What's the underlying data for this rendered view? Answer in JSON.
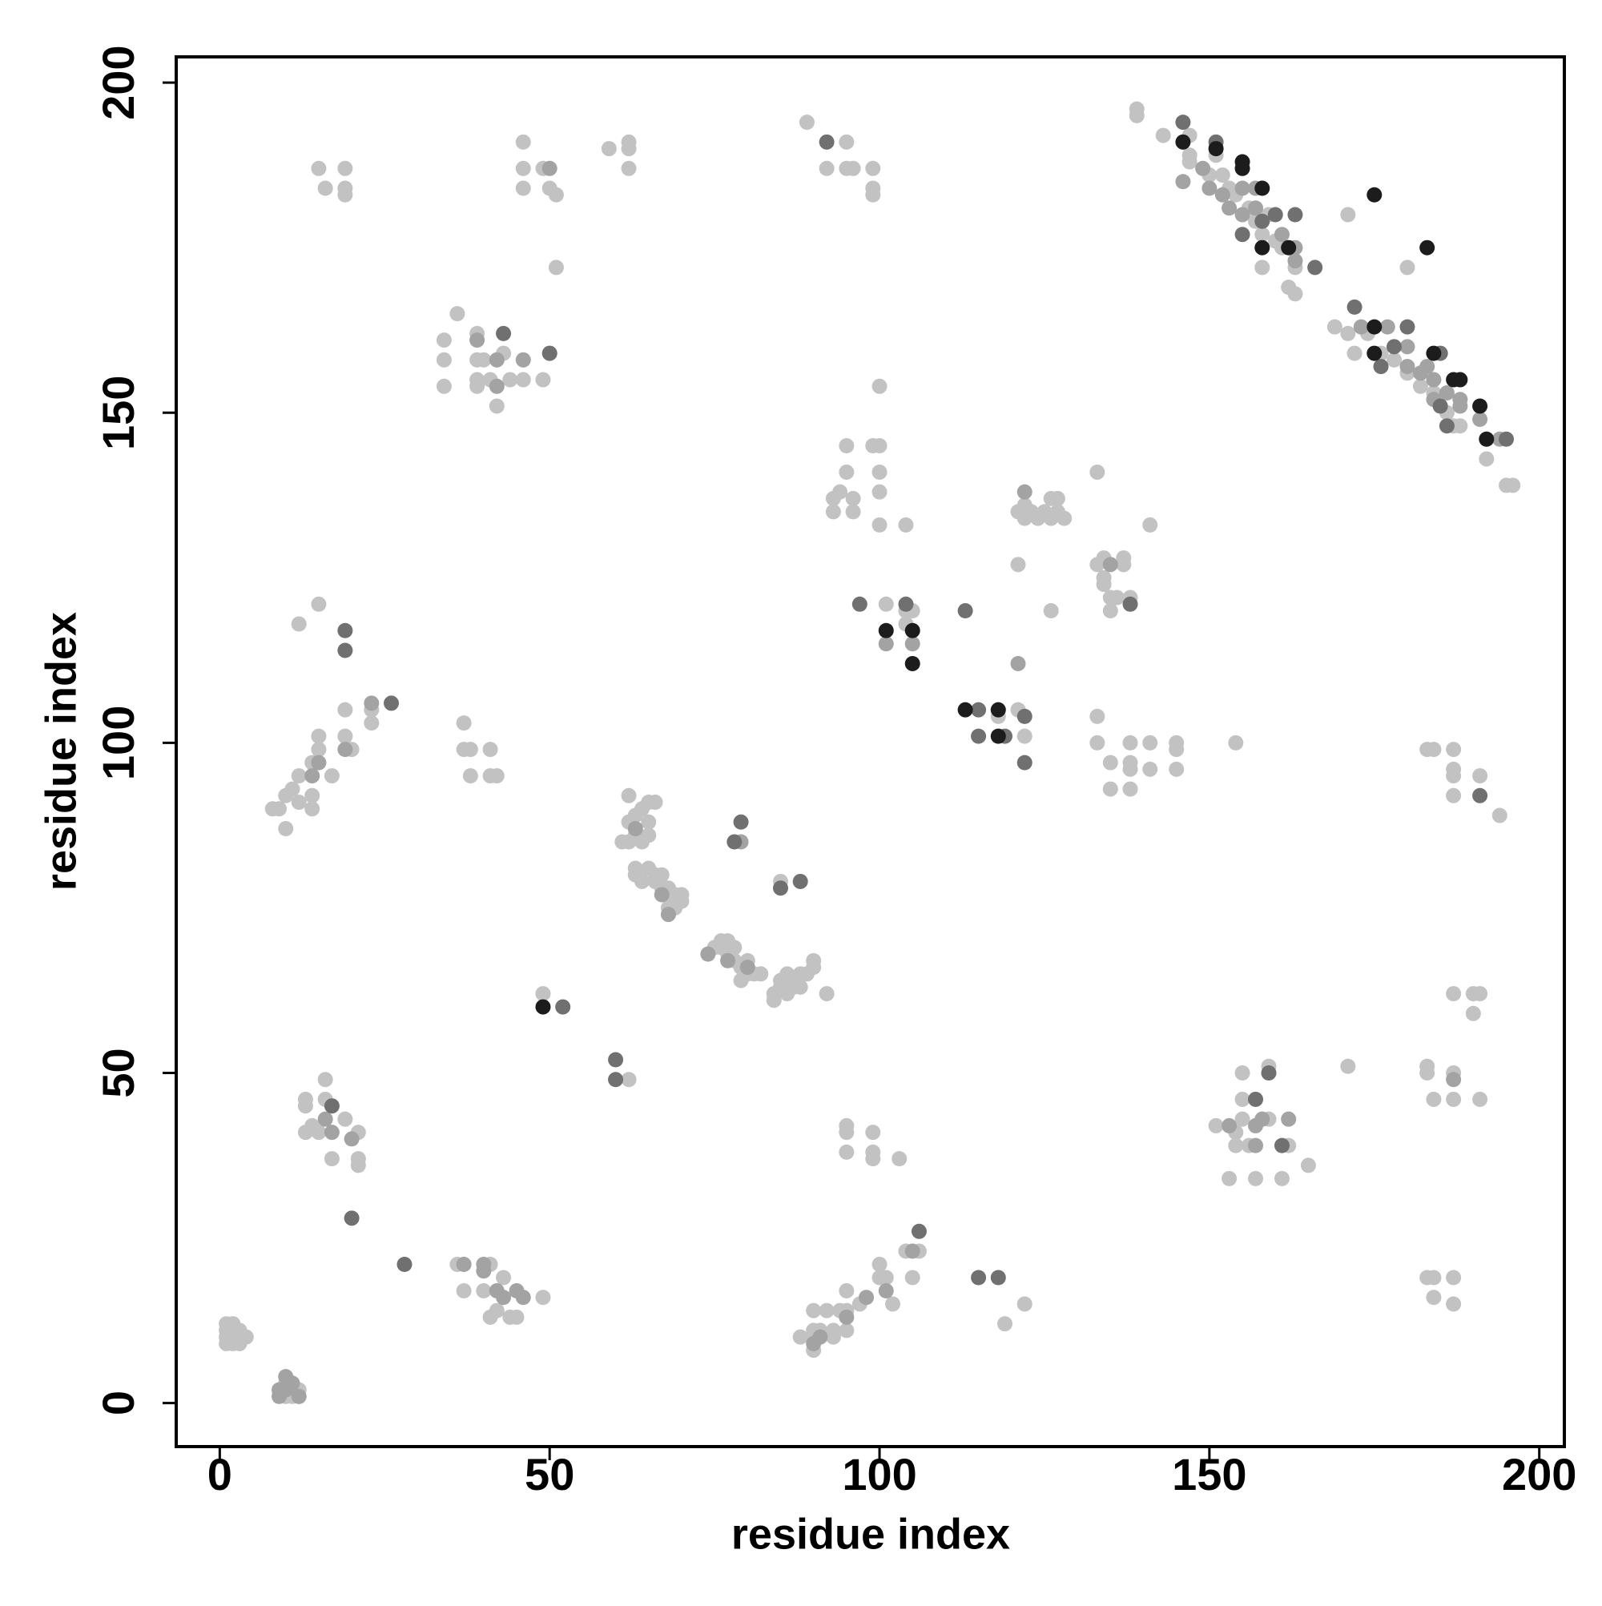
{
  "chart_data": {
    "type": "scatter",
    "xlabel": "residue index",
    "ylabel": "residue index",
    "xlim": [
      -6.6,
      203.8
    ],
    "ylim": [
      -6.6,
      203.9
    ],
    "xticks": [
      0,
      50,
      100,
      150,
      200
    ],
    "yticks": [
      0,
      50,
      100,
      150,
      200
    ],
    "grid": false,
    "series": [
      {
        "color": "#c2c2c2",
        "x": [
          1,
          1,
          1,
          1,
          2,
          2,
          2,
          2,
          3,
          3,
          3,
          4,
          10,
          10,
          11,
          11,
          12,
          12,
          8,
          9,
          10,
          10,
          11,
          12,
          12,
          14,
          14,
          14,
          15,
          15,
          17,
          19,
          19,
          20,
          23,
          23,
          12,
          15,
          13,
          13,
          13,
          14,
          15,
          16,
          16,
          17,
          19,
          21,
          21,
          21,
          15,
          16,
          19,
          19,
          19,
          36,
          37,
          40,
          41,
          41,
          42,
          43,
          44,
          45,
          49,
          34,
          34,
          34,
          36,
          39,
          39,
          39,
          39,
          40,
          41,
          42,
          43,
          44,
          46,
          49,
          50,
          37,
          37,
          38,
          38,
          41,
          41,
          42,
          46,
          46,
          46,
          49,
          50,
          51,
          51,
          59,
          62,
          62,
          62,
          49,
          62,
          61,
          62,
          62,
          62,
          63,
          63,
          64,
          64,
          65,
          65,
          65,
          66,
          63,
          63,
          64,
          65,
          66,
          67,
          67,
          68,
          68,
          69,
          68,
          70,
          70,
          69,
          66,
          75,
          76,
          76,
          77,
          77,
          78,
          78,
          79,
          80,
          81,
          82,
          80,
          79,
          84,
          84,
          85,
          85,
          86,
          86,
          87,
          87,
          88,
          88,
          89,
          90,
          90,
          92,
          85,
          88,
          90,
          90,
          90,
          90,
          91,
          92,
          93,
          93,
          94,
          95,
          95,
          95,
          97,
          100,
          100,
          101,
          102,
          104,
          105,
          106,
          95,
          95,
          95,
          99,
          99,
          99,
          103,
          119,
          122,
          89,
          92,
          95,
          95,
          96,
          99,
          99,
          99,
          93,
          93,
          96,
          96,
          95,
          95,
          99,
          100,
          100,
          100,
          100,
          104,
          100,
          94,
          101,
          104,
          104,
          105,
          118,
          121,
          122,
          121,
          122,
          123,
          124,
          125,
          126,
          126,
          127,
          127,
          128,
          121,
          126,
          122,
          133,
          133,
          134,
          134,
          135,
          135,
          136,
          137,
          137,
          138,
          134,
          141,
          133,
          133,
          135,
          135,
          138,
          138,
          138,
          138,
          141,
          141,
          145,
          145,
          145,
          154,
          139,
          139,
          143,
          147,
          147,
          147,
          150,
          151,
          152,
          153,
          154,
          156,
          157,
          158,
          158,
          159,
          160,
          161,
          162,
          163,
          163,
          171,
          180,
          169,
          171,
          172,
          174,
          176,
          178,
          180,
          182,
          184,
          186,
          187,
          188,
          192,
          192,
          195,
          196,
          151,
          153,
          154,
          154,
          155,
          155,
          155,
          157,
          159,
          159,
          161,
          162,
          165,
          156,
          171,
          183,
          183,
          184,
          187,
          187,
          191,
          187,
          190,
          191,
          190,
          183,
          184,
          184,
          187,
          187,
          183,
          184,
          187,
          187,
          187,
          187,
          191,
          194
        ],
        "values": [
          9,
          10,
          11,
          12,
          9,
          10,
          11,
          12,
          9,
          10,
          11,
          10,
          1,
          3,
          1,
          2,
          1,
          2,
          90,
          90,
          87,
          92,
          93,
          91,
          95,
          90,
          92,
          97,
          101,
          99,
          95,
          101,
          105,
          99,
          103,
          105,
          118,
          121,
          41,
          45,
          46,
          42,
          41,
          46,
          49,
          37,
          43,
          41,
          36,
          37,
          187,
          184,
          187,
          184,
          183,
          21,
          17,
          17,
          21,
          13,
          14,
          19,
          13,
          13,
          16,
          161,
          158,
          154,
          165,
          162,
          158,
          155,
          154,
          158,
          155,
          151,
          159,
          155,
          155,
          155,
          159,
          103,
          99,
          95,
          99,
          99,
          95,
          95,
          191,
          187,
          184,
          187,
          184,
          183,
          172,
          190,
          191,
          190,
          187,
          62,
          49,
          85,
          85,
          88,
          92,
          86,
          89,
          90,
          85,
          91,
          88,
          86,
          91,
          81,
          80,
          79,
          81,
          80,
          80,
          78,
          78,
          77,
          77,
          75,
          77,
          76,
          75,
          79,
          69,
          69,
          70,
          70,
          68,
          69,
          67,
          66,
          65,
          65,
          65,
          67,
          64,
          62,
          61,
          64,
          63,
          62,
          65,
          63,
          64,
          65,
          63,
          65,
          66,
          67,
          62,
          79,
          10,
          8,
          10,
          11,
          14,
          11,
          14,
          11,
          10,
          14,
          11,
          14,
          17,
          15,
          21,
          19,
          19,
          15,
          23,
          19,
          23,
          42,
          41,
          38,
          41,
          38,
          37,
          37,
          12,
          15,
          194,
          187,
          191,
          187,
          187,
          187,
          184,
          183,
          137,
          135,
          137,
          135,
          141,
          145,
          145,
          145,
          141,
          138,
          133,
          133,
          154,
          138,
          121,
          120,
          118,
          120,
          104,
          105,
          101,
          135,
          134,
          135,
          134,
          135,
          134,
          137,
          137,
          135,
          134,
          127,
          120,
          136,
          141,
          127,
          128,
          125,
          122,
          120,
          122,
          127,
          128,
          122,
          124,
          133,
          104,
          100,
          97,
          93,
          100,
          97,
          96,
          93,
          100,
          96,
          100,
          99,
          96,
          100,
          196,
          195,
          192,
          192,
          189,
          188,
          186,
          189,
          186,
          184,
          183,
          181,
          179,
          177,
          172,
          180,
          176,
          175,
          169,
          168,
          172,
          180,
          172,
          163,
          162,
          159,
          162,
          159,
          158,
          156,
          154,
          153,
          150,
          148,
          148,
          146,
          143,
          139,
          139,
          42,
          34,
          39,
          41,
          50,
          46,
          43,
          34,
          51,
          43,
          34,
          39,
          36,
          39,
          51,
          51,
          50,
          46,
          50,
          46,
          46,
          62,
          62,
          62,
          59,
          19,
          19,
          16,
          19,
          15,
          99,
          99,
          99,
          96,
          95,
          92,
          95,
          89
        ]
      },
      {
        "color": "#a3a3a3",
        "x": [
          9,
          9,
          10,
          10,
          11,
          12,
          14,
          15,
          19,
          23,
          16,
          17,
          20,
          37,
          40,
          40,
          42,
          43,
          45,
          46,
          39,
          42,
          42,
          46,
          50,
          63,
          67,
          68,
          74,
          77,
          80,
          79,
          90,
          91,
          95,
          98,
          101,
          105,
          101,
          105,
          121,
          122,
          135,
          146,
          149,
          150,
          152,
          153,
          155,
          155,
          157,
          157,
          161,
          163,
          163,
          173,
          177,
          180,
          183,
          184,
          186,
          188,
          191,
          194,
          188,
          180,
          182,
          184,
          153,
          157,
          158,
          162,
          157,
          187
        ],
        "values": [
          1,
          2,
          2,
          4,
          3,
          1,
          95,
          97,
          99,
          106,
          43,
          41,
          40,
          21,
          20,
          21,
          17,
          16,
          17,
          16,
          161,
          158,
          154,
          158,
          187,
          87,
          77,
          74,
          68,
          67,
          66,
          85,
          9,
          10,
          13,
          16,
          17,
          23,
          115,
          115,
          112,
          138,
          127,
          185,
          187,
          184,
          183,
          181,
          180,
          184,
          184,
          181,
          177,
          175,
          173,
          163,
          163,
          160,
          157,
          155,
          153,
          151,
          149,
          146,
          152,
          157,
          156,
          152,
          42,
          42,
          43,
          43,
          39,
          49
        ]
      },
      {
        "color": "#707070",
        "x": [
          19,
          19,
          26,
          17,
          20,
          28,
          43,
          50,
          52,
          60,
          60,
          85,
          88,
          79,
          78,
          106,
          115,
          118,
          92,
          97,
          104,
          113,
          115,
          115,
          119,
          122,
          122,
          138,
          146,
          151,
          155,
          158,
          160,
          163,
          166,
          172,
          176,
          178,
          185,
          186,
          195,
          185,
          180,
          157,
          159,
          161,
          191
        ],
        "values": [
          117,
          114,
          106,
          45,
          28,
          21,
          162,
          159,
          60,
          52,
          49,
          78,
          79,
          88,
          85,
          26,
          19,
          19,
          191,
          121,
          121,
          120,
          105,
          101,
          101,
          104,
          97,
          121,
          194,
          191,
          177,
          179,
          180,
          180,
          172,
          166,
          157,
          160,
          151,
          148,
          146,
          159,
          163,
          46,
          50,
          39,
          92
        ]
      },
      {
        "color": "#1c1c1c",
        "x": [
          49,
          101,
          105,
          105,
          113,
          118,
          118,
          146,
          151,
          155,
          155,
          158,
          158,
          162,
          175,
          183,
          175,
          175,
          184,
          187,
          188,
          191,
          192
        ],
        "values": [
          60,
          117,
          117,
          112,
          105,
          105,
          101,
          191,
          190,
          188,
          187,
          184,
          175,
          175,
          183,
          175,
          159,
          163,
          159,
          155,
          155,
          151,
          146
        ]
      }
    ]
  }
}
